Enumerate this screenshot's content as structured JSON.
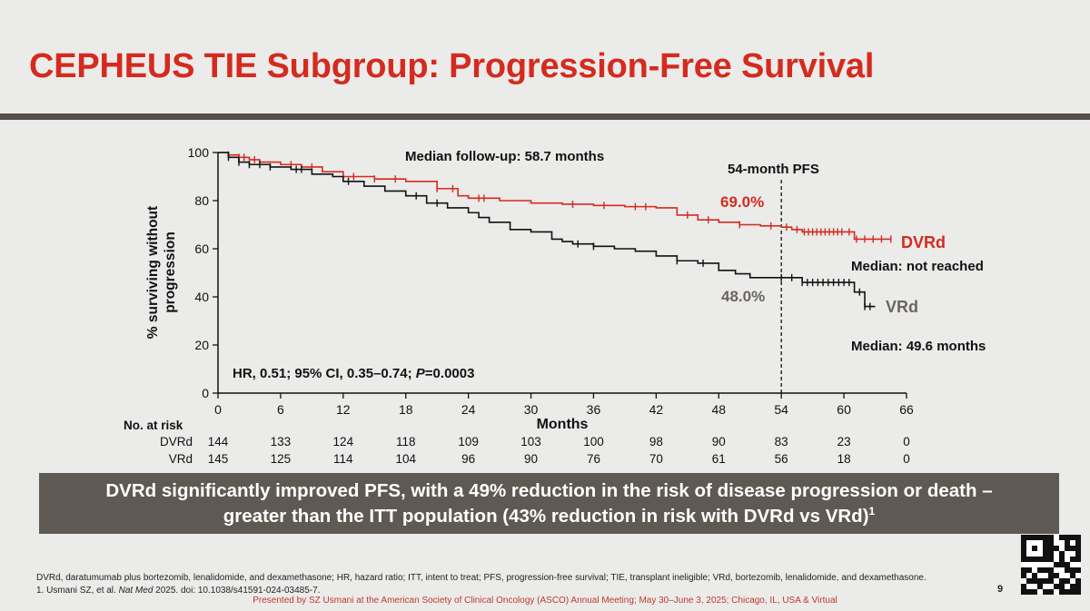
{
  "slide": {
    "title": "CEPHEUS TIE Subgroup: Progression-Free Survival",
    "page_number": "9",
    "colors": {
      "title_red": "#d42b1e",
      "dvrd": "#d42b1e",
      "vrd": "#111111",
      "vrd_label": "#6b6560",
      "callout_bg": "#5f5953",
      "rule": "#555049"
    }
  },
  "callout": {
    "line1": "DVRd significantly improved PFS, with a 49% reduction in the risk of disease progression or death –",
    "line2_main": "greater than the ITT population (43% reduction in risk with DVRd vs VRd)",
    "line2_sup": "1"
  },
  "footnotes": {
    "abbreviations": "DVRd, daratumumab plus bortezomib, lenalidomide, and dexamethasone; HR, hazard ratio; ITT, intent to treat; PFS, progression-free survival; TIE, transplant ineligible; VRd, bortezomib, lenalidomide, and dexamethasone.",
    "reference_prefix": "1. Usmani SZ, et al. ",
    "reference_journal": "Nat Med",
    "reference_suffix": " 2025. doi: 10.1038/s41591-024-03485-7.",
    "presented": "Presented by SZ Usmani at the American Society of Clinical Oncology (ASCO) Annual Meeting; May 30–June 3, 2025; Chicago, IL, USA & Virtual"
  },
  "qr_icon": "qr-code-icon",
  "chart_data": {
    "type": "line",
    "xlabel": "Months",
    "ylabel": "% surviving without progression",
    "xlim": [
      0,
      66
    ],
    "ylim": [
      0,
      100
    ],
    "xticks": [
      0,
      6,
      12,
      18,
      24,
      30,
      36,
      42,
      48,
      54,
      60,
      66
    ],
    "yticks": [
      0,
      20,
      40,
      60,
      80,
      100
    ],
    "grid": false,
    "annotations": {
      "median_followup": "Median follow-up: 58.7 months",
      "landmark_label": "54-month PFS",
      "landmark_x": 54,
      "hr_text_prefix": "HR, 0.51; 95% CI, 0.35–0.74; ",
      "hr_text_p": "P",
      "hr_text_value": "=0.0003"
    },
    "series": [
      {
        "name": "DVRd",
        "color": "#d42b1e",
        "landmark_value": "69.0%",
        "median_text": "Median: not reached",
        "x": [
          0,
          1,
          2,
          3,
          4,
          6,
          8,
          10,
          12,
          15,
          18,
          21,
          23,
          24,
          27,
          30,
          33,
          36,
          39,
          42,
          44,
          46,
          48,
          50,
          52,
          54,
          55,
          56,
          60,
          61,
          64.5
        ],
        "y": [
          100,
          99,
          98,
          97,
          96,
          95,
          94,
          92,
          90,
          89,
          88,
          85,
          82,
          81,
          80,
          79,
          78.5,
          78,
          77.5,
          77,
          74,
          72,
          71,
          70,
          69.5,
          69,
          68,
          67,
          67,
          64,
          64
        ],
        "censor_x": [
          1,
          2,
          2.5,
          3.5,
          7,
          9,
          13,
          15,
          17,
          21,
          22.5,
          25,
          25.5,
          34,
          37,
          40,
          41,
          45,
          47,
          50,
          53,
          54.5,
          55.5,
          56.2,
          56.6,
          57,
          57.4,
          57.8,
          58.2,
          58.6,
          59,
          59.4,
          59.8,
          60.5,
          61.2,
          62,
          62.8,
          63.6,
          64.5
        ]
      },
      {
        "name": "VRd",
        "color": "#111111",
        "landmark_value": "48.0%",
        "median_text": "Median: 49.6 months",
        "x": [
          0,
          1,
          2,
          3,
          5,
          7,
          9,
          11,
          12,
          14,
          16,
          18,
          20,
          22,
          24,
          25,
          26,
          28,
          30,
          32,
          33,
          34,
          36,
          38,
          40,
          42,
          44,
          46,
          48,
          49.6,
          51,
          54,
          56,
          60,
          61,
          62,
          63
        ],
        "y": [
          100,
          98,
          96,
          95,
          94,
          93,
          91,
          90,
          88,
          86,
          84,
          82,
          79,
          77,
          75,
          73,
          71,
          68,
          67,
          64,
          63,
          62,
          61,
          60,
          59,
          57,
          55,
          54,
          51,
          49.6,
          48,
          48,
          46,
          46,
          42,
          36,
          36
        ],
        "censor_x": [
          1,
          2,
          3,
          4,
          5,
          7.5,
          8,
          12.5,
          19,
          21,
          34.5,
          36,
          44,
          46.5,
          54,
          55,
          56,
          56.5,
          57,
          57.5,
          58,
          58.5,
          59,
          59.5,
          60,
          60.5,
          61.5,
          62,
          62.5
        ]
      }
    ],
    "risk_table": {
      "header": "No. at risk",
      "x": [
        0,
        6,
        12,
        18,
        24,
        30,
        36,
        42,
        48,
        54,
        60,
        66
      ],
      "rows": [
        {
          "label": "DVRd",
          "values": [
            "144",
            "133",
            "124",
            "118",
            "109",
            "103",
            "100",
            "98",
            "90",
            "83",
            "23",
            "0"
          ]
        },
        {
          "label": "VRd",
          "values": [
            "145",
            "125",
            "114",
            "104",
            "96",
            "90",
            "76",
            "70",
            "61",
            "56",
            "18",
            "0"
          ]
        }
      ]
    }
  }
}
